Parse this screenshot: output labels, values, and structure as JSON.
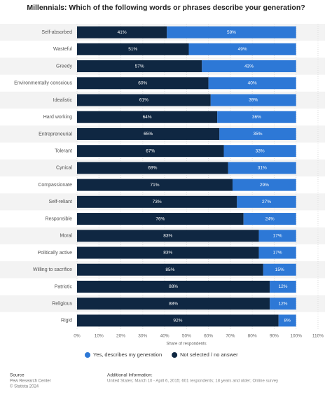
{
  "chart_data": {
    "type": "stacked-bar-horizontal",
    "title": "Millennials: Which of the following words or phrases describe your generation?",
    "categories": [
      "Self-absorbed",
      "Wasteful",
      "Greedy",
      "Environmentally conscious",
      "Idealistic",
      "Hard working",
      "Entrepreneurial",
      "Tolerant",
      "Cynical",
      "Compassionate",
      "Self-reliant",
      "Responsible",
      "Moral",
      "Politically active",
      "Willing to sacrifice",
      "Patriotic",
      "Religious",
      "Rigid"
    ],
    "series": [
      {
        "name": "Not selected / no answer",
        "color": "#0f2742",
        "values": [
          41,
          51,
          57,
          60,
          61,
          64,
          65,
          67,
          69,
          71,
          73,
          76,
          83,
          83,
          85,
          88,
          88,
          92
        ],
        "value_labels": [
          "41%",
          "51%",
          "57%",
          "60%",
          "61%",
          "64%",
          "65%",
          "67%",
          "69%",
          "71%",
          "73%",
          "76%",
          "83%",
          "83%",
          "85%",
          "88%",
          "88%",
          "92%"
        ]
      },
      {
        "name": "Yes, describes my generation",
        "color": "#2d78d6",
        "values": [
          59,
          49,
          43,
          40,
          39,
          36,
          35,
          33,
          31,
          29,
          27,
          24,
          17,
          17,
          15,
          12,
          12,
          8
        ],
        "value_labels": [
          "59%",
          "49%",
          "43%",
          "40%",
          "39%",
          "36%",
          "35%",
          "33%",
          "31%",
          "29%",
          "27%",
          "24%",
          "17%",
          "17%",
          "15%",
          "12%",
          "12%",
          "8%"
        ]
      }
    ],
    "xlabel": "Share of respondents",
    "xlim": [
      0,
      110
    ],
    "xticks": [
      {
        "value": 0,
        "label": "0%"
      },
      {
        "value": 10,
        "label": "10%"
      },
      {
        "value": 20,
        "label": "20%"
      },
      {
        "value": 30,
        "label": "30%"
      },
      {
        "value": 40,
        "label": "40%"
      },
      {
        "value": 50,
        "label": "50%"
      },
      {
        "value": 60,
        "label": "60%"
      },
      {
        "value": 70,
        "label": "70%"
      },
      {
        "value": 80,
        "label": "80%"
      },
      {
        "value": 90,
        "label": "90%"
      },
      {
        "value": 100,
        "label": "100%"
      },
      {
        "value": 110,
        "label": "110%"
      }
    ],
    "grid": true
  },
  "footer": {
    "source_heading": "Source",
    "source": "Pew Research Center",
    "copyright": "© Statista 2024",
    "info_heading": "Additional Information:",
    "info": "United States; March 10 - April 6, 2015; 601 respondents; 18 years and older; Online survey"
  }
}
